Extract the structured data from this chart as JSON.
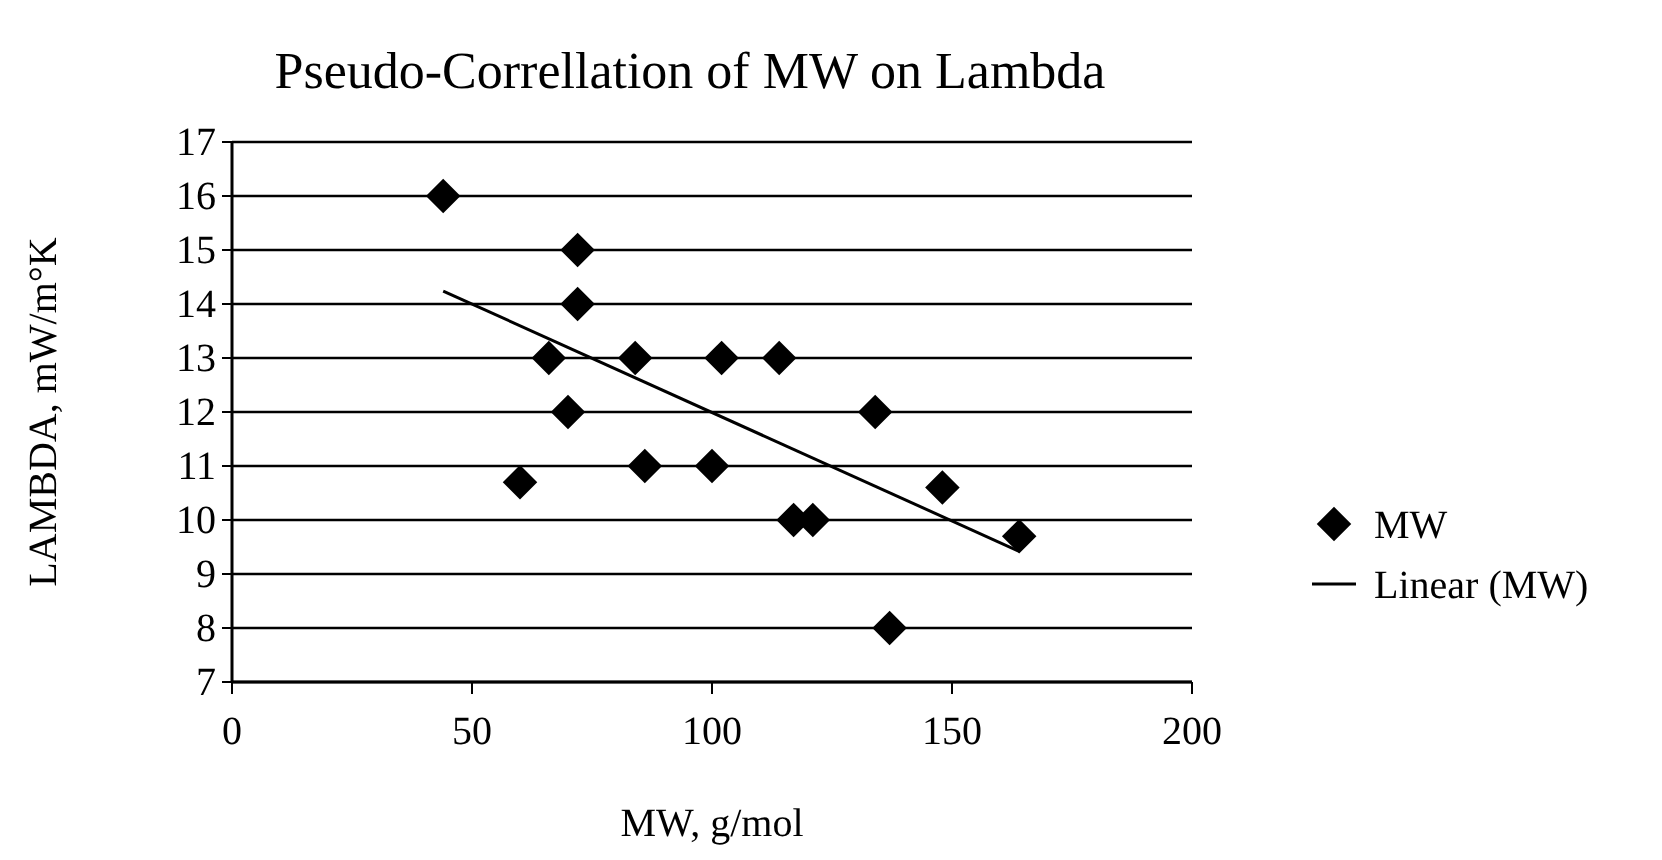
{
  "chart_data": {
    "type": "scatter",
    "title": "Pseudo-Correllation of MW on Lambda",
    "xlabel": "MW, g/mol",
    "ylabel": "LAMBDA, mW/m°K",
    "xlim": [
      0,
      200
    ],
    "xticks": [
      0,
      50,
      100,
      150,
      200
    ],
    "ylim": [
      7,
      17
    ],
    "yticks": [
      7,
      8,
      9,
      10,
      11,
      12,
      13,
      14,
      15,
      16,
      17
    ],
    "grid": "y",
    "legend": "right",
    "marker": "diamond",
    "series": [
      {
        "name": "MW",
        "color": "#000000",
        "x": [
          44,
          72,
          72,
          66,
          84,
          70,
          60,
          86,
          102,
          114,
          134,
          100,
          148,
          117,
          121,
          164,
          137
        ],
        "values": [
          16,
          15,
          14,
          13,
          13,
          12,
          10.7,
          11,
          13,
          13,
          12,
          11,
          10.6,
          10,
          10,
          9.7,
          8
        ]
      },
      {
        "name": "Linear (MW)",
        "type": "line",
        "color": "#000000",
        "line_style": "solid",
        "marker": "none",
        "x": [
          44,
          164
        ],
        "values": [
          14.24,
          9.42
        ]
      }
    ]
  }
}
